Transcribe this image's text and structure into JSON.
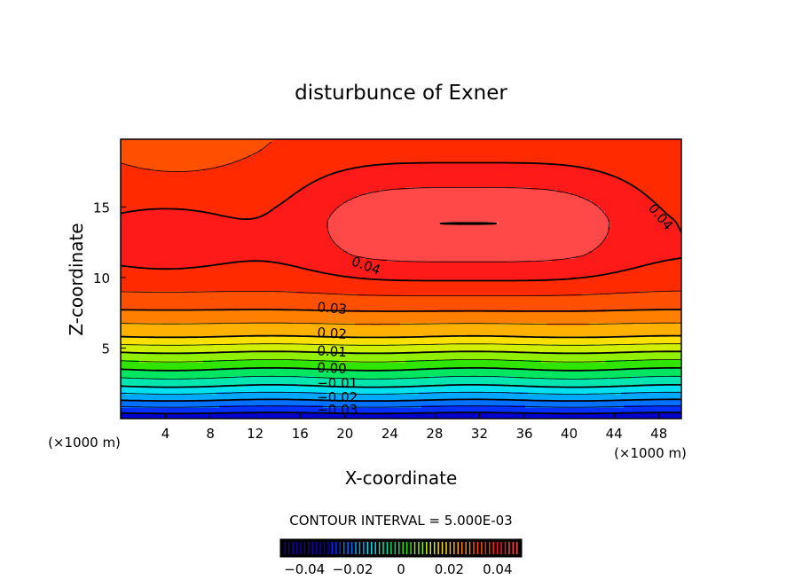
{
  "chart_data": {
    "type": "heatmap",
    "subtype": "filled-contour",
    "title": "disturbunce of Exner",
    "xlabel": "X-coordinate",
    "ylabel": "Z-coordinate",
    "x_unit": "(×1000 m)",
    "y_unit": "(×1000 m)",
    "xlim": [
      0,
      50
    ],
    "ylim": [
      0,
      19.8
    ],
    "xticks": [
      "4",
      "8",
      "12",
      "16",
      "20",
      "24",
      "28",
      "32",
      "36",
      "40",
      "44",
      "48"
    ],
    "xtick_values": [
      4,
      8,
      12,
      16,
      20,
      24,
      28,
      32,
      36,
      40,
      44,
      48
    ],
    "yticks": [
      "5",
      "10",
      "15"
    ],
    "ytick_values": [
      5,
      10,
      15
    ],
    "contour_interval_text": "CONTOUR INTERVAL = 5.000E-03",
    "contour_interval": 0.005,
    "value_range": [
      -0.035,
      0.05
    ],
    "vertical_profile": {
      "z": [
        0,
        0.4,
        1.3,
        2.3,
        3.5,
        4.7,
        5.8,
        7.7,
        9.6,
        11.5,
        14,
        20
      ],
      "value": [
        -0.034,
        -0.03,
        -0.02,
        -0.01,
        0.0,
        0.01,
        0.02,
        0.03,
        0.037,
        0.04,
        0.0395,
        0.036
      ]
    },
    "central_maximum": {
      "x": 31,
      "z": 14,
      "amplitude": 0.0105
    },
    "contour_labels": [
      {
        "text": "0.04",
        "x": 20.5,
        "z": 10.9,
        "angle": 20
      },
      {
        "text": "0.04",
        "x": 47,
        "z": 14.9,
        "angle": 50
      },
      {
        "text": "0.03",
        "x": 17.5,
        "z": 7.6,
        "angle": 5
      },
      {
        "text": "0.02",
        "x": 17.5,
        "z": 5.8,
        "angle": 4
      },
      {
        "text": "0.01",
        "x": 17.5,
        "z": 4.5,
        "angle": 3
      },
      {
        "text": "0.00",
        "x": 17.5,
        "z": 3.3,
        "angle": 2
      },
      {
        "text": "−0.01",
        "x": 17.5,
        "z": 2.2,
        "angle": 0
      },
      {
        "text": "−0.02",
        "x": 17.5,
        "z": 1.2,
        "angle": 0
      },
      {
        "text": "−0.03",
        "x": 17.5,
        "z": 0.3,
        "angle": 0
      }
    ],
    "colorbar": {
      "range": [
        -0.05,
        0.05
      ],
      "ticks": [
        "−0.04",
        "−0.02",
        "0",
        "0.02",
        "0.04"
      ],
      "tick_values": [
        -0.04,
        -0.02,
        0,
        0.02,
        0.04
      ]
    },
    "palette": [
      "#1a00a0",
      "#0000d0",
      "#0030ff",
      "#0070ff",
      "#00a8ff",
      "#00e0f0",
      "#00e6b0",
      "#00e660",
      "#30e600",
      "#90f000",
      "#d0f000",
      "#ffe000",
      "#ffb000",
      "#ff8000",
      "#ff5000",
      "#ff2a00",
      "#ff1a1a",
      "#ff4848",
      "#ff6a6a",
      "#ff8080"
    ],
    "palette_start": -0.04
  }
}
